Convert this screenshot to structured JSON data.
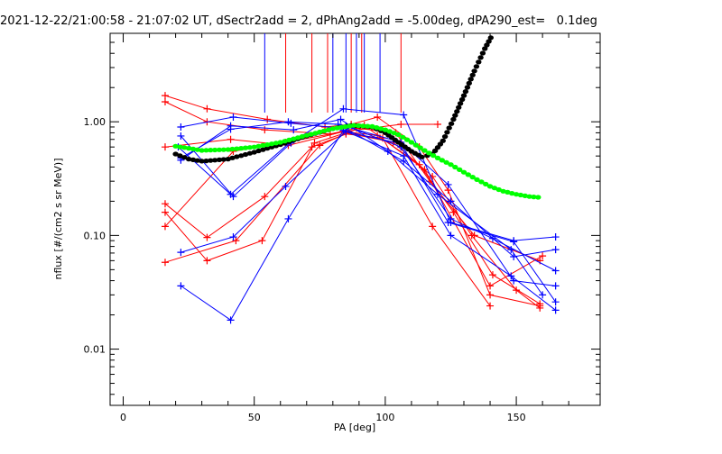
{
  "chart_data": {
    "type": "scatter",
    "title": "2021-12-22/21:00:58 - 21:07:02 UT, dSectr2add = 2, dPhAng2add = -5.00deg, dPA290_est=   0.1deg",
    "xlabel": "PA [deg]",
    "ylabel": "nflux [#/(cm2 s sr MeV)]",
    "xlim": [
      -5,
      182
    ],
    "ylim": [
      0.0032,
      6.0
    ],
    "yscale": "log",
    "xticks": [
      0,
      50,
      100,
      150
    ],
    "xtick_labels": [
      "0",
      "50",
      "100",
      "150"
    ],
    "yticks": [
      0.01,
      0.1,
      1.0
    ],
    "ytick_labels": [
      "0.01",
      "0.10",
      "1.00"
    ],
    "grid": false,
    "legend": "none",
    "colors": {
      "red": "#ff0000",
      "blue": "#0000ff",
      "green": "#00ff00",
      "black": "#000000"
    },
    "vertical_lines": [
      {
        "color": "#0000ff",
        "x": [
          54,
          80,
          85,
          98
        ]
      },
      {
        "color": "#ff0000",
        "x": [
          62,
          72,
          78,
          87,
          91,
          106
        ]
      },
      {
        "color": "#0000ff",
        "x": [
          89,
          92
        ]
      }
    ],
    "series": [
      {
        "color": "#ff0000",
        "x": [
          16,
          32,
          55,
          77,
          87,
          97,
          113,
          124,
          140,
          159
        ],
        "y": [
          1.7,
          1.3,
          1.05,
          0.9,
          0.95,
          1.1,
          0.6,
          0.25,
          0.03,
          0.024
        ]
      },
      {
        "color": "#ff0000",
        "x": [
          16,
          32,
          54,
          79,
          89,
          104,
          117,
          134,
          159
        ],
        "y": [
          1.5,
          1.0,
          0.85,
          0.78,
          0.88,
          0.8,
          0.3,
          0.1,
          0.06
        ]
      },
      {
        "color": "#ff0000",
        "x": [
          16,
          41,
          63,
          84,
          97,
          113,
          126,
          141,
          159
        ],
        "y": [
          0.6,
          0.7,
          0.62,
          0.82,
          0.76,
          0.42,
          0.16,
          0.045,
          0.025
        ]
      },
      {
        "color": "#ff0000",
        "x": [
          16,
          32,
          54,
          72,
          85,
          99,
          118,
          140
        ],
        "y": [
          0.19,
          0.096,
          0.22,
          0.6,
          0.78,
          0.72,
          0.12,
          0.024
        ]
      },
      {
        "color": "#ff0000",
        "x": [
          16,
          32,
          53,
          73,
          85,
          103,
          118,
          133,
          150,
          159
        ],
        "y": [
          0.16,
          0.06,
          0.09,
          0.65,
          0.8,
          0.66,
          0.33,
          0.1,
          0.033,
          0.023
        ]
      },
      {
        "color": "#ff0000",
        "x": [
          16,
          42,
          62,
          84,
          106,
          120
        ],
        "y": [
          0.12,
          0.55,
          0.66,
          0.82,
          0.95,
          0.95
        ]
      },
      {
        "color": "#ff0000",
        "x": [
          16,
          43,
          75,
          92,
          115,
          140,
          160
        ],
        "y": [
          0.058,
          0.09,
          0.62,
          0.93,
          0.38,
          0.036,
          0.066
        ]
      },
      {
        "color": "#0000ff",
        "x": [
          22,
          42,
          64,
          84,
          107,
          125,
          149,
          165
        ],
        "y": [
          0.75,
          0.22,
          0.65,
          1.3,
          1.15,
          0.13,
          0.09,
          0.097
        ]
      },
      {
        "color": "#0000ff",
        "x": [
          22,
          42,
          64,
          85,
          107,
          125,
          149,
          165
        ],
        "y": [
          0.9,
          1.1,
          0.97,
          0.87,
          0.45,
          0.2,
          0.065,
          0.075
        ]
      },
      {
        "color": "#0000ff",
        "x": [
          21,
          41,
          64,
          85,
          106,
          125,
          141,
          165
        ],
        "y": [
          0.6,
          0.23,
          0.67,
          0.92,
          0.6,
          0.14,
          0.094,
          0.049
        ]
      },
      {
        "color": "#0000ff",
        "x": [
          22,
          41,
          63,
          82,
          106,
          124,
          149,
          165
        ],
        "y": [
          0.48,
          0.86,
          1.0,
          0.95,
          0.66,
          0.28,
          0.04,
          0.036
        ]
      },
      {
        "color": "#0000ff",
        "x": [
          22,
          42,
          62,
          85,
          106,
          124,
          149,
          165
        ],
        "y": [
          0.071,
          0.097,
          0.27,
          0.82,
          0.64,
          0.13,
          0.088,
          0.026
        ]
      },
      {
        "color": "#0000ff",
        "x": [
          22,
          41,
          63,
          84,
          107,
          125,
          148,
          165
        ],
        "y": [
          0.036,
          0.018,
          0.14,
          0.84,
          0.5,
          0.1,
          0.044,
          0.022
        ]
      },
      {
        "color": "#0000ff",
        "x": [
          22,
          41,
          65,
          83,
          101,
          120,
          148,
          160
        ],
        "y": [
          0.46,
          0.92,
          0.85,
          1.05,
          0.55,
          0.23,
          0.075,
          0.03
        ]
      }
    ],
    "fit_curves": [
      {
        "color": "#000000",
        "x": [
          20,
          25,
          30,
          40,
          50,
          60,
          70,
          80,
          87,
          95,
          100,
          105,
          110,
          114,
          118,
          122,
          126,
          130,
          134,
          138,
          141
        ],
        "y": [
          0.52,
          0.47,
          0.45,
          0.47,
          0.54,
          0.63,
          0.75,
          0.87,
          0.93,
          0.9,
          0.8,
          0.66,
          0.55,
          0.49,
          0.52,
          0.68,
          1.05,
          1.7,
          2.8,
          4.4,
          5.9
        ]
      },
      {
        "color": "#00ff00",
        "x": [
          20,
          30,
          40,
          50,
          60,
          70,
          80,
          88,
          95,
          100,
          105,
          110,
          115,
          120,
          125,
          130,
          135,
          140,
          145,
          150,
          155,
          160
        ],
        "y": [
          0.61,
          0.56,
          0.57,
          0.6,
          0.66,
          0.76,
          0.87,
          0.93,
          0.91,
          0.85,
          0.77,
          0.66,
          0.56,
          0.48,
          0.42,
          0.36,
          0.31,
          0.27,
          0.245,
          0.23,
          0.22,
          0.215
        ]
      }
    ]
  }
}
